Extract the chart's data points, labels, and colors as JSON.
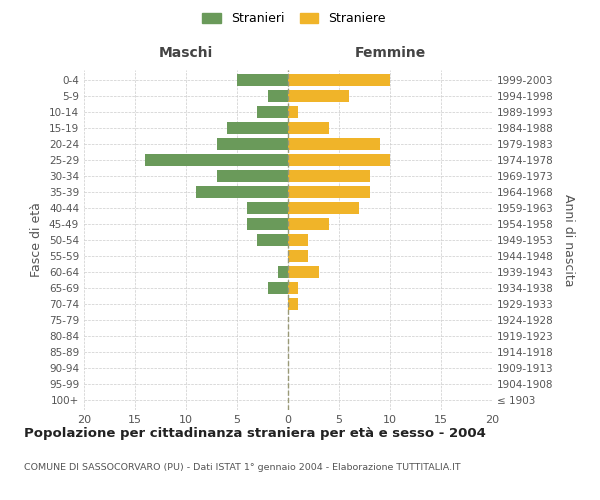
{
  "age_groups": [
    "100+",
    "95-99",
    "90-94",
    "85-89",
    "80-84",
    "75-79",
    "70-74",
    "65-69",
    "60-64",
    "55-59",
    "50-54",
    "45-49",
    "40-44",
    "35-39",
    "30-34",
    "25-29",
    "20-24",
    "15-19",
    "10-14",
    "5-9",
    "0-4"
  ],
  "birth_years": [
    "≤ 1903",
    "1904-1908",
    "1909-1913",
    "1914-1918",
    "1919-1923",
    "1924-1928",
    "1929-1933",
    "1934-1938",
    "1939-1943",
    "1944-1948",
    "1949-1953",
    "1954-1958",
    "1959-1963",
    "1964-1968",
    "1969-1973",
    "1974-1978",
    "1979-1983",
    "1984-1988",
    "1989-1993",
    "1994-1998",
    "1999-2003"
  ],
  "maschi": [
    0,
    0,
    0,
    0,
    0,
    0,
    0,
    2,
    1,
    0,
    3,
    4,
    4,
    9,
    7,
    14,
    7,
    6,
    3,
    2,
    5
  ],
  "femmine": [
    0,
    0,
    0,
    0,
    0,
    0,
    1,
    1,
    3,
    2,
    2,
    4,
    7,
    8,
    8,
    10,
    9,
    4,
    1,
    6,
    10
  ],
  "male_color": "#6a9a5a",
  "female_color": "#f0b429",
  "title": "Popolazione per cittadinanza straniera per età e sesso - 2004",
  "subtitle": "COMUNE DI SASSOCORVARO (PU) - Dati ISTAT 1° gennaio 2004 - Elaborazione TUTTITALIA.IT",
  "ylabel_left": "Fasce di età",
  "ylabel_right": "Anni di nascita",
  "xlabel_left": "Maschi",
  "xlabel_right": "Femmine",
  "legend_male": "Stranieri",
  "legend_female": "Straniere",
  "xlim": 20,
  "background_color": "#ffffff",
  "grid_color": "#cccccc"
}
